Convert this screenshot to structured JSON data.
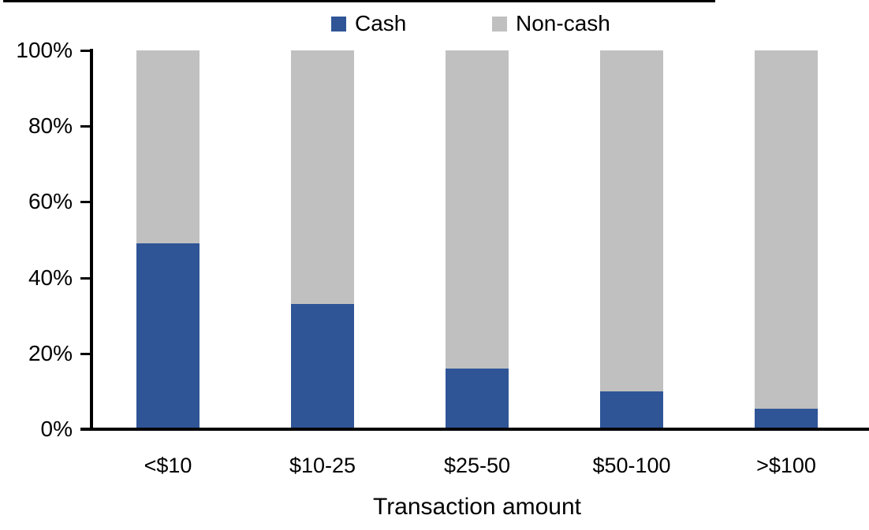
{
  "chart_data": {
    "type": "bar",
    "stacked_percent": true,
    "title": "",
    "categories": [
      "<$10",
      "$10-25",
      "$25-50",
      "$50-100",
      ">$100"
    ],
    "series": [
      {
        "name": "Cash",
        "color": "#2F5597",
        "values": [
          49,
          33,
          16,
          10,
          5.5
        ]
      },
      {
        "name": "Non-cash",
        "color": "#C0C0C0",
        "values": [
          51,
          67,
          84,
          90,
          94.5
        ]
      }
    ],
    "xlabel": "Transaction amount",
    "ylabel": "",
    "ylim": [
      0,
      100
    ],
    "yticks": [
      0,
      20,
      40,
      60,
      80,
      100
    ],
    "ytick_labels": [
      "0%",
      "20%",
      "40%",
      "60%",
      "80%",
      "100%"
    ],
    "grid": false,
    "legend_position": "top",
    "axis_color": "#000000",
    "background_color": "#FFFFFF"
  }
}
